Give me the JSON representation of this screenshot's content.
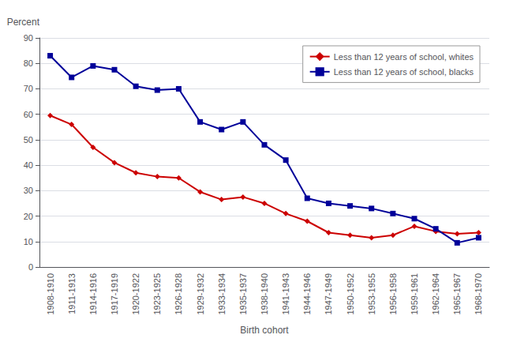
{
  "chart_data": {
    "type": "line",
    "xlabel": "Birth cohort",
    "ylabel": "Percent",
    "categories": [
      "1908-1910",
      "1911-1913",
      "1914-1916",
      "1917-1919",
      "1920-1922",
      "1923-1925",
      "1926-1928",
      "1929-1932",
      "1933-1934",
      "1935-1937",
      "1938-1940",
      "1941-1943",
      "1944-1946",
      "1947-1949",
      "1950-1952",
      "1953-1955",
      "1956-1958",
      "1959-1961",
      "1962-1964",
      "1965-1967",
      "1968-1970"
    ],
    "series": [
      {
        "name": "Less than 12 years of school, whites",
        "color": "#CC0000",
        "marker": "diamond",
        "values": [
          59.5,
          56,
          47,
          41,
          37,
          35.5,
          35,
          29.5,
          26.5,
          27.5,
          25,
          21,
          18,
          13.5,
          12.5,
          11.5,
          12.5,
          16,
          14,
          13,
          13.5
        ]
      },
      {
        "name": "Less than 12 years of school, blacks",
        "color": "#000099",
        "marker": "square",
        "values": [
          83,
          74.5,
          79,
          77.5,
          71,
          69.5,
          70,
          57,
          54,
          57,
          48,
          42,
          27,
          25,
          24,
          23,
          21,
          19,
          15,
          9.5,
          11.5
        ]
      }
    ],
    "ylim": [
      0,
      90
    ],
    "yticks": [
      0,
      10,
      20,
      30,
      40,
      50,
      60,
      70,
      80,
      90
    ],
    "grid": true,
    "legend": "upper right"
  }
}
